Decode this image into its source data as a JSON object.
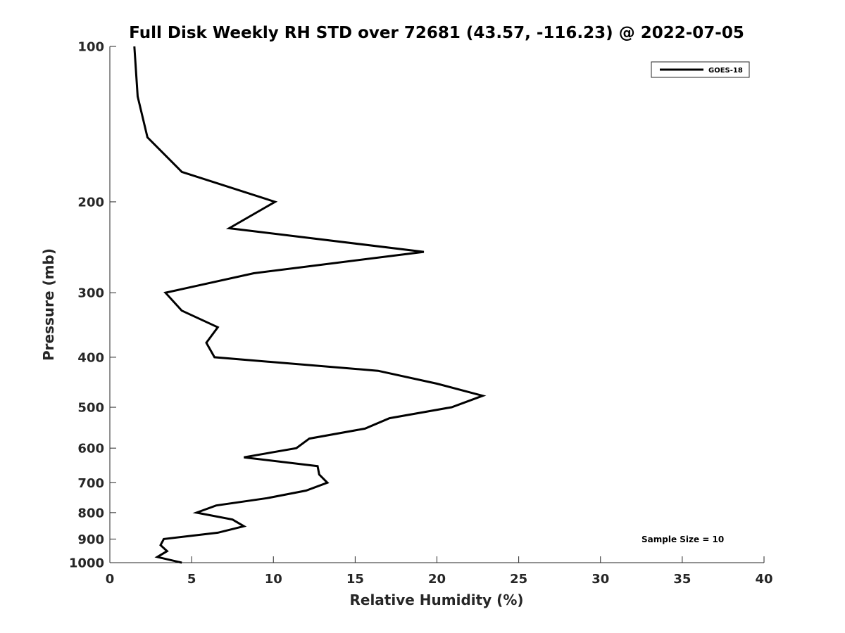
{
  "chart_data": {
    "type": "line",
    "title": "Full Disk Weekly RH STD over 72681 (43.57, -116.23) @ 2022-07-05",
    "xlabel": "Relative Humidity (%)",
    "ylabel": "Pressure (mb)",
    "xlim": [
      0,
      40
    ],
    "ylim": [
      100,
      1000
    ],
    "y_scale": "log",
    "y_reversed": true,
    "x_ticks": [
      0,
      5,
      10,
      15,
      20,
      25,
      30,
      35,
      40
    ],
    "y_ticks": [
      100,
      200,
      300,
      400,
      500,
      600,
      700,
      800,
      900,
      1000
    ],
    "grid": false,
    "legend_position": "top-right",
    "annotation": "Sample Size = 10",
    "series": [
      {
        "name": "GOES-18",
        "color": "#000000",
        "points": [
          [
            1.5,
            100
          ],
          [
            1.7,
            125
          ],
          [
            2.3,
            150
          ],
          [
            4.4,
            175
          ],
          [
            10.1,
            200
          ],
          [
            7.3,
            225
          ],
          [
            19.2,
            250
          ],
          [
            8.8,
            275
          ],
          [
            3.4,
            300
          ],
          [
            4.4,
            325
          ],
          [
            6.6,
            350
          ],
          [
            5.9,
            375
          ],
          [
            6.4,
            400
          ],
          [
            16.4,
            425
          ],
          [
            20.0,
            450
          ],
          [
            22.8,
            475
          ],
          [
            20.9,
            500
          ],
          [
            17.1,
            525
          ],
          [
            15.6,
            550
          ],
          [
            12.2,
            575
          ],
          [
            11.4,
            600
          ],
          [
            8.2,
            625
          ],
          [
            12.7,
            650
          ],
          [
            12.8,
            675
          ],
          [
            13.3,
            700
          ],
          [
            12.0,
            725
          ],
          [
            9.6,
            750
          ],
          [
            6.5,
            775
          ],
          [
            5.3,
            800
          ],
          [
            7.5,
            825
          ],
          [
            8.2,
            850
          ],
          [
            6.6,
            875
          ],
          [
            3.3,
            900
          ],
          [
            3.1,
            925
          ],
          [
            3.5,
            950
          ],
          [
            2.9,
            975
          ],
          [
            4.4,
            1000
          ]
        ]
      }
    ]
  }
}
